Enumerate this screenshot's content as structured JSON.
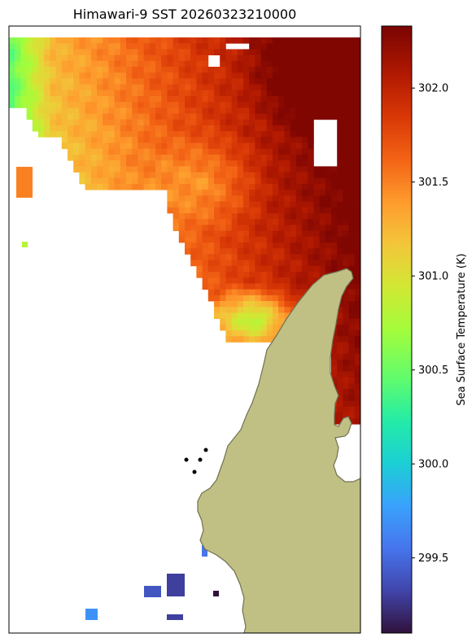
{
  "chart_data": {
    "type": "heatmap",
    "title": "Himawari-9 SST 20260323210000",
    "colorbar": {
      "label": "Sea Surface Temperature (K)",
      "ticks": [
        "299.5",
        "300.0",
        "300.5",
        "301.0",
        "301.5",
        "302.0"
      ],
      "tick_values": [
        299.5,
        300.0,
        300.5,
        301.0,
        301.5,
        302.0
      ],
      "range": [
        299.1,
        302.33
      ],
      "colormap": "turbo"
    },
    "grid": false,
    "axes_ticks": false,
    "field_summary": {
      "min_K": 299.1,
      "max_K": 302.3,
      "warmest_region": "top-right",
      "coolest_region": "bottom-left",
      "land_color": "#c0c084"
    }
  }
}
